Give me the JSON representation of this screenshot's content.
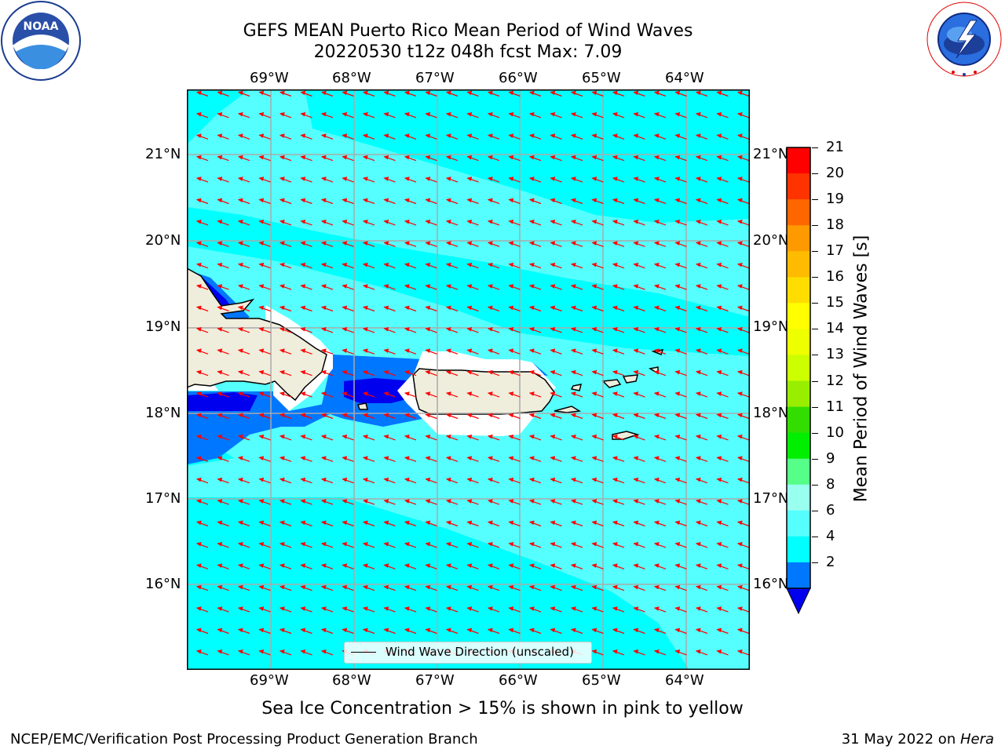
{
  "header": {
    "title_line1": "GEFS MEAN Puerto Rico Mean Period of Wind Waves",
    "title_line2": "20220530 t12z 048h fcst   Max: 7.09"
  },
  "logos": {
    "noaa_label": "NOAA",
    "noaa_ring": "NATIONAL OCEANIC AND ATMOSPHERIC ADMINISTRATION · U.S. DEPARTMENT OF COMMERCE",
    "nws_ring": "NATIONAL WEATHER SERVICE"
  },
  "map": {
    "lon_labels": [
      "69°W",
      "68°W",
      "67°W",
      "66°W",
      "65°W",
      "64°W"
    ],
    "lat_labels": [
      "21°N",
      "20°N",
      "19°N",
      "18°N",
      "17°N",
      "16°N"
    ],
    "background_color": "#00FFFF",
    "land_color": "#EFEDDC",
    "vector_color": "#FF0000",
    "wind_direction": "from east (arrows point west)"
  },
  "legend": {
    "label": "Wind Wave Direction (unscaled)"
  },
  "colorbar": {
    "label": "Mean Period of Wind Waves [s]",
    "ticks": [
      "21",
      "20",
      "19",
      "18",
      "17",
      "16",
      "15",
      "14",
      "13",
      "12",
      "11",
      "10",
      "9",
      "8",
      "6",
      "4",
      "2"
    ],
    "colors": [
      "#FF0000",
      "#FF3300",
      "#FF6600",
      "#FF9900",
      "#FFBB00",
      "#FFDD00",
      "#FFFF00",
      "#EEFF00",
      "#CCFF00",
      "#99EE00",
      "#33DD00",
      "#00EE00",
      "#55FF88",
      "#99FFEE",
      "#55FFFF",
      "#00FFFF",
      "#0077FF"
    ],
    "extend_color": "#0000EE"
  },
  "footer": {
    "subtitle": "Sea Ice Concentration > 15% is shown in pink to yellow",
    "left": "NCEP/EMC/Verification Post Processing Product Generation Branch",
    "right_prefix": "31 May 2022 on ",
    "right_host": "Hera"
  }
}
